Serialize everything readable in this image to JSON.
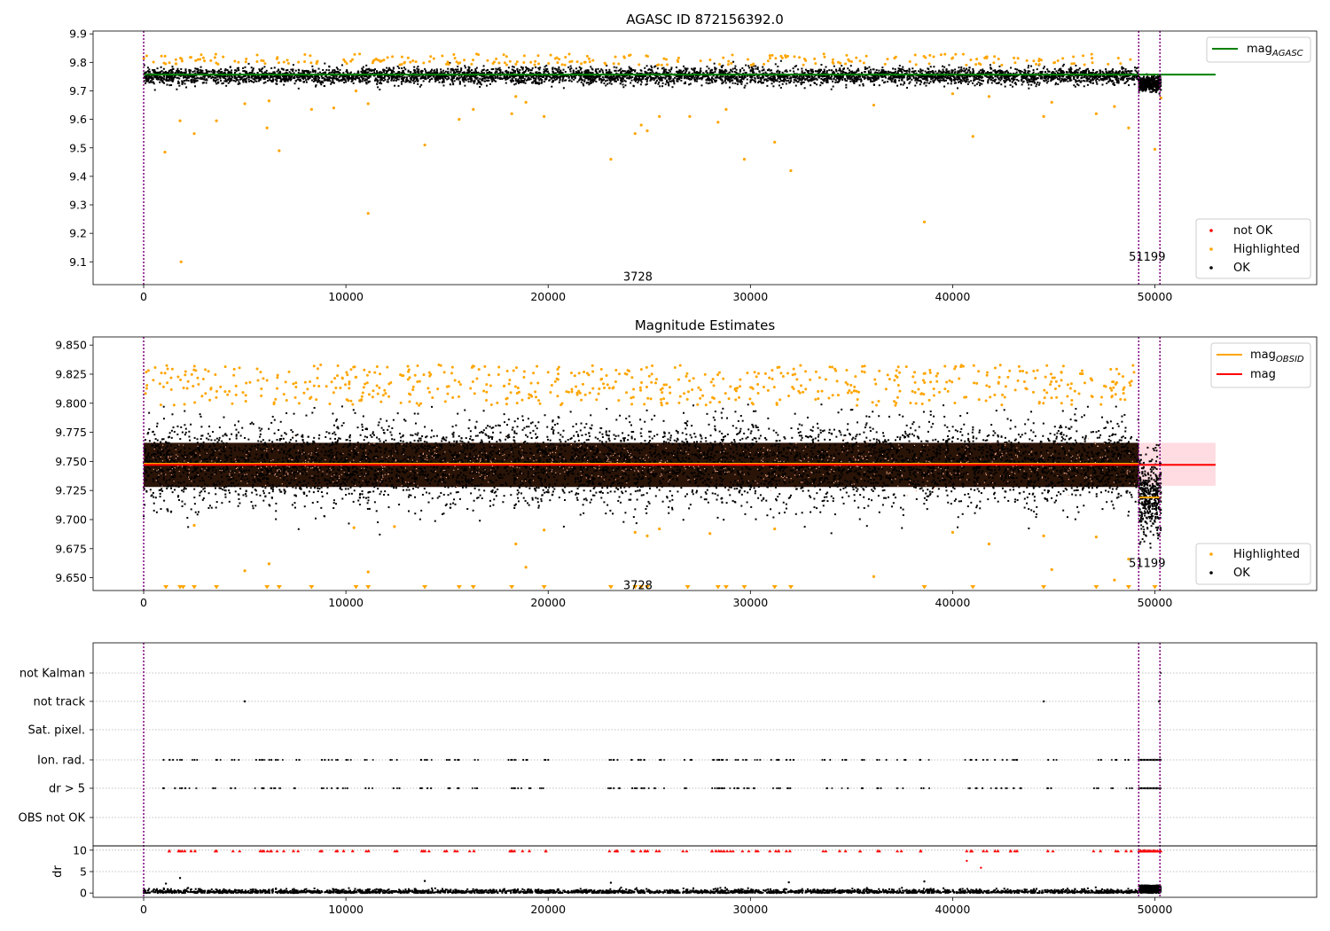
{
  "chart_data": [
    {
      "type": "scatter",
      "title": "AGASC ID 872156392.0",
      "xlim": [
        -2500,
        58000
      ],
      "ylim": [
        9.02,
        9.91
      ],
      "xticks": [
        0,
        10000,
        20000,
        30000,
        40000,
        50000
      ],
      "xtick_labels": [
        "0",
        "10000",
        "20000",
        "30000",
        "40000",
        "50000"
      ],
      "yticks": [
        9.1,
        9.2,
        9.3,
        9.4,
        9.5,
        9.6,
        9.7,
        9.8,
        9.9
      ],
      "ytick_labels": [
        "9.1",
        "9.2",
        "9.3",
        "9.4",
        "9.5",
        "9.6",
        "9.7",
        "9.8",
        "9.9"
      ],
      "vlines": [
        0,
        49200,
        50250
      ],
      "obs_labels": [
        {
          "text": "3728",
          "x": 24500,
          "y": 9.05
        },
        {
          "text": "51199",
          "x": 49500,
          "y": 9.12
        }
      ],
      "line_series": [
        {
          "name": "mag",
          "name_sub": "AGASC",
          "color": "#008000",
          "y": 9.757,
          "x_range": [
            0,
            53000
          ]
        }
      ],
      "legend_upper": [
        {
          "kind": "line",
          "label": "mag",
          "label_sub": "AGASC",
          "color": "#008000"
        }
      ],
      "legend_lower": [
        {
          "kind": "dot",
          "label": "not OK",
          "color": "#ff0000"
        },
        {
          "kind": "dot",
          "label": "Highlighted",
          "color": "#ffa500"
        },
        {
          "kind": "dot",
          "label": "OK",
          "color": "#000000"
        }
      ],
      "band": {
        "x_start": 0,
        "x_end": 50300,
        "center": 9.752,
        "sd": 0.014,
        "segment2": {
          "x_start": 49200,
          "x_end": 50300,
          "center": 9.725,
          "sd": 0.012
        }
      },
      "highlighted_outliers": [
        [
          1050,
          9.485
        ],
        [
          1850,
          9.1
        ],
        [
          1800,
          9.595
        ],
        [
          2500,
          9.55
        ],
        [
          3600,
          9.595
        ],
        [
          5000,
          9.655
        ],
        [
          6100,
          9.57
        ],
        [
          6200,
          9.665
        ],
        [
          6700,
          9.49
        ],
        [
          8300,
          9.635
        ],
        [
          9400,
          9.64
        ],
        [
          10500,
          9.7
        ],
        [
          11100,
          9.655
        ],
        [
          11100,
          9.27
        ],
        [
          13900,
          9.51
        ],
        [
          15600,
          9.6
        ],
        [
          16300,
          9.635
        ],
        [
          18200,
          9.62
        ],
        [
          18400,
          9.68
        ],
        [
          18900,
          9.66
        ],
        [
          19800,
          9.61
        ],
        [
          23100,
          9.46
        ],
        [
          24300,
          9.55
        ],
        [
          24600,
          9.58
        ],
        [
          24900,
          9.56
        ],
        [
          25500,
          9.61
        ],
        [
          27000,
          9.61
        ],
        [
          28400,
          9.59
        ],
        [
          28800,
          9.635
        ],
        [
          29700,
          9.46
        ],
        [
          31200,
          9.52
        ],
        [
          32000,
          9.42
        ],
        [
          36100,
          9.65
        ],
        [
          38600,
          9.24
        ],
        [
          40000,
          9.69
        ],
        [
          41000,
          9.54
        ],
        [
          41800,
          9.68
        ],
        [
          44500,
          9.61
        ],
        [
          44900,
          9.66
        ],
        [
          47100,
          9.62
        ],
        [
          48000,
          9.645
        ],
        [
          48700,
          9.57
        ],
        [
          50000,
          9.495
        ],
        [
          50300,
          9.675
        ]
      ]
    },
    {
      "type": "scatter",
      "title": "Magnitude Estimates",
      "xlim": [
        -2500,
        58000
      ],
      "ylim": [
        9.639,
        9.857
      ],
      "xticks": [
        0,
        10000,
        20000,
        30000,
        40000,
        50000
      ],
      "xtick_labels": [
        "0",
        "10000",
        "20000",
        "30000",
        "40000",
        "50000"
      ],
      "yticks": [
        9.65,
        9.675,
        9.7,
        9.725,
        9.75,
        9.775,
        9.8,
        9.825,
        9.85
      ],
      "ytick_labels": [
        "9.650",
        "9.675",
        "9.700",
        "9.725",
        "9.750",
        "9.775",
        "9.800",
        "9.825",
        "9.850"
      ],
      "vlines": [
        0,
        49200,
        50250
      ],
      "obs_labels": [
        {
          "text": "3728",
          "x": 24500,
          "y": 9.644
        },
        {
          "text": "51199",
          "x": 49500,
          "y": 9.663
        }
      ],
      "line_series": [
        {
          "name": "mag",
          "name_sub": "OBSID",
          "color": "#ffa500",
          "y": 9.748,
          "x_range": [
            0,
            49200
          ]
        },
        {
          "name": "mag",
          "name_sub": "OBSID",
          "color": "#ffa500",
          "y": 9.719,
          "x_range": [
            49200,
            50300
          ]
        },
        {
          "name": "mag",
          "name_sub": "",
          "color": "#ff0000",
          "y": 9.747,
          "x_range": [
            0,
            53000
          ]
        }
      ],
      "error_band": {
        "y_low": 9.729,
        "y_high": 9.766,
        "x_range": [
          0,
          53000
        ],
        "color": "#ffc0cb"
      },
      "legend_upper": [
        {
          "kind": "line",
          "label": "mag",
          "label_sub": "OBSID",
          "color": "#ffa500"
        },
        {
          "kind": "line",
          "label": "mag",
          "label_sub": "",
          "color": "#ff0000"
        }
      ],
      "legend_lower": [
        {
          "kind": "dot",
          "label": "Highlighted",
          "color": "#ffa500"
        },
        {
          "kind": "dot",
          "label": "OK",
          "color": "#000000"
        }
      ],
      "clipped_marker_x": [
        1100,
        1800,
        1950,
        2500,
        3600,
        6100,
        6700,
        8300,
        10500,
        11100,
        13900,
        15600,
        16300,
        18200,
        19800,
        23100,
        24300,
        24600,
        24900,
        26900,
        28400,
        28800,
        29700,
        31200,
        32000,
        38600,
        41000,
        44500,
        47100,
        48700,
        50000
      ]
    },
    {
      "type": "scatter",
      "title": "",
      "xlim": [
        -2500,
        58000
      ],
      "categories": [
        "not Kalman",
        "not track",
        "Sat. pixel.",
        "Ion. rad.",
        "dr > 5",
        "OBS not OK"
      ],
      "xticks": [
        0,
        10000,
        20000,
        30000,
        40000,
        50000
      ],
      "xtick_labels": [
        "0",
        "10000",
        "20000",
        "30000",
        "40000",
        "50000"
      ],
      "vlines": [
        0,
        49200,
        50250
      ],
      "flag_points": {
        "not track": [
          5000,
          44500,
          50200
        ],
        "not Kalman": [
          50300
        ],
        "cluster_x": [
          1100,
          1700,
          1900,
          2500,
          3600,
          4500,
          5700,
          6100,
          6500,
          6800,
          7500,
          8900,
          9400,
          10100,
          11100,
          12400,
          13900,
          14000,
          15100,
          15600,
          16300,
          18200,
          18300,
          18900,
          19800,
          23100,
          23300,
          24300,
          24600,
          24800,
          25500,
          26900,
          28200,
          28400,
          28600,
          28800,
          29200,
          29700,
          30400,
          31200,
          31600,
          32000,
          33800,
          34600,
          35500,
          36500,
          37500,
          38600,
          40700,
          41000,
          41700,
          42300,
          42800,
          43200,
          44900,
          47100,
          48000,
          48700
        ]
      },
      "dr_panel": {
        "ylabel": "dr",
        "yticks": [
          0,
          5,
          10
        ],
        "ytick_labels": [
          "0",
          "5",
          "10"
        ],
        "ylim": [
          -1,
          11
        ],
        "extra_points": [
          [
            1100,
            2.2
          ],
          [
            1800,
            3.5
          ],
          [
            13900,
            2.8
          ],
          [
            23100,
            2.4
          ],
          [
            31900,
            2.5
          ],
          [
            38600,
            2.7
          ],
          [
            40700,
            7.5
          ],
          [
            41400,
            5.9
          ]
        ]
      }
    }
  ]
}
